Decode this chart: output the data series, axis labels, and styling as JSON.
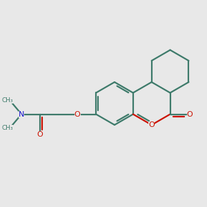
{
  "bg_color": "#e8e8e8",
  "bond_color": "#3d7a6a",
  "oxygen_color": "#cc1100",
  "nitrogen_color": "#1111cc",
  "lw": 1.6,
  "figsize": [
    3.0,
    3.0
  ],
  "dpi": 100,
  "xlim": [
    -2.6,
    2.2
  ],
  "ylim": [
    -1.8,
    2.0
  ]
}
